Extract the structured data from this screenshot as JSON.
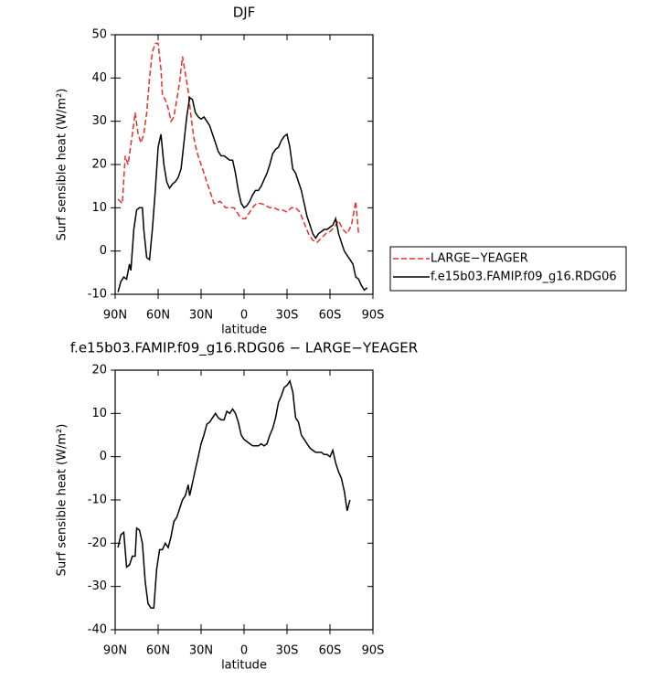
{
  "chart_data": [
    {
      "type": "line",
      "title": "DJF",
      "x_label": "latitude",
      "y_label": "Surf sensible heat (W/m²)",
      "xlim": [
        90,
        -90
      ],
      "xticks": [
        {
          "value": 90,
          "label": "90N"
        },
        {
          "value": 60,
          "label": "60N"
        },
        {
          "value": 30,
          "label": "30N"
        },
        0,
        {
          "value": -30,
          "label": "30S"
        },
        {
          "value": -60,
          "label": "60S"
        },
        {
          "value": -90,
          "label": "90S"
        }
      ],
      "ylim": [
        -10,
        50
      ],
      "yticks": [
        -10,
        0,
        10,
        20,
        30,
        40,
        50
      ],
      "legend": "outside-right",
      "series": [
        {
          "name": "LARGE−YEAGER",
          "color": "#e8302a",
          "dash": true,
          "x": [
            88,
            85,
            83,
            81,
            78,
            76,
            74,
            72,
            70,
            68,
            66,
            64,
            62,
            60,
            58,
            57,
            55,
            53,
            51,
            49,
            47,
            45,
            43,
            41,
            39,
            37,
            35,
            33,
            31,
            29,
            27,
            25,
            23,
            21,
            19,
            17,
            15,
            13,
            11,
            9,
            7,
            5,
            3,
            1,
            -1,
            -3,
            -5,
            -7,
            -9,
            -12,
            -15,
            -18,
            -21,
            -24,
            -27,
            -30,
            -33,
            -36,
            -39,
            -42,
            -45,
            -48,
            -51,
            -54,
            -57,
            -60,
            -63,
            -66,
            -69,
            -72,
            -75,
            -78,
            -80
          ],
          "values": [
            12,
            11,
            22,
            20,
            27,
            32,
            27,
            25,
            27,
            32,
            40,
            46,
            48,
            48,
            42,
            36,
            35,
            33,
            30,
            31,
            35,
            39,
            45,
            41,
            37,
            31,
            26,
            23,
            21,
            19,
            17,
            15,
            13,
            11,
            11,
            11.5,
            11,
            10,
            10,
            10,
            10,
            9,
            8,
            7.5,
            7.5,
            8.5,
            9.5,
            10.5,
            11,
            11,
            10.5,
            10,
            10,
            9.5,
            9.5,
            9,
            10,
            10,
            9,
            6.5,
            4,
            2.5,
            2,
            3,
            4,
            4.5,
            5.5,
            7,
            5,
            4,
            6,
            11.5,
            4
          ]
        },
        {
          "name": "f.e15b03.FAMIP.f09_g16.RDG06",
          "color": "#000000",
          "dash": false,
          "x": [
            88,
            86,
            84,
            82,
            80,
            79,
            77,
            75,
            73,
            71,
            70,
            68,
            66,
            64,
            62,
            60,
            58,
            56,
            54,
            52,
            50,
            48,
            46,
            44,
            42,
            40,
            38,
            36,
            34,
            32,
            30,
            28,
            26,
            24,
            22,
            20,
            18,
            16,
            14,
            12,
            10,
            8,
            6,
            4,
            2,
            0,
            -2,
            -4,
            -6,
            -8,
            -10,
            -12,
            -14,
            -16,
            -18,
            -20,
            -22,
            -24,
            -26,
            -28,
            -30,
            -32,
            -34,
            -36,
            -38,
            -40,
            -42,
            -44,
            -46,
            -48,
            -50,
            -52,
            -54,
            -56,
            -58,
            -60,
            -62,
            -64,
            -66,
            -68,
            -70,
            -72,
            -74,
            -76,
            -78,
            -80,
            -82,
            -84,
            -86
          ],
          "values": [
            -9.5,
            -7,
            -6,
            -6.5,
            -3,
            -4.5,
            5,
            9.5,
            10,
            10,
            5,
            -1.5,
            -2,
            5,
            14,
            24,
            27,
            20,
            16,
            14.5,
            15.5,
            16,
            17,
            19,
            25,
            31,
            35.5,
            35,
            32,
            31,
            30.5,
            31,
            30,
            29,
            27,
            25,
            23,
            22,
            22,
            21.5,
            21,
            21,
            18,
            14,
            11,
            10,
            10.5,
            11.5,
            13,
            14,
            14,
            15,
            16.5,
            18,
            20,
            22.5,
            23.5,
            24,
            25.5,
            26.5,
            27,
            24,
            19,
            18,
            16,
            14,
            11,
            8,
            6,
            4,
            3,
            4,
            4.5,
            5,
            5,
            5.5,
            6,
            7.5,
            4,
            2,
            0,
            -1,
            -2,
            -3,
            -6,
            -6.5,
            -8,
            -9,
            -8.5
          ]
        }
      ]
    },
    {
      "type": "line",
      "title": "f.e15b03.FAMIP.f09_g16.RDG06 − LARGE−YEAGER",
      "x_label": "latitude",
      "y_label": "Surf sensible heat (W/m²)",
      "xlim": [
        90,
        -90
      ],
      "xticks": [
        {
          "value": 90,
          "label": "90N"
        },
        {
          "value": 60,
          "label": "60N"
        },
        {
          "value": 30,
          "label": "30N"
        },
        0,
        {
          "value": -30,
          "label": "30S"
        },
        {
          "value": -60,
          "label": "60S"
        },
        {
          "value": -90,
          "label": "90S"
        }
      ],
      "ylim": [
        -40,
        20
      ],
      "yticks": [
        -40,
        -30,
        -20,
        -10,
        0,
        10,
        20
      ],
      "series": [
        {
          "color": "#000000",
          "dash": false,
          "x": [
            88,
            86,
            84,
            82,
            80,
            78,
            76,
            75,
            73,
            71,
            69,
            67,
            65,
            63,
            61,
            59,
            57,
            55,
            53,
            51,
            49,
            47,
            45,
            43,
            41,
            39,
            38,
            36,
            34,
            32,
            30,
            28,
            26,
            24,
            22,
            20,
            18,
            16,
            14,
            12,
            10,
            8,
            6,
            4,
            2,
            0,
            -2,
            -4,
            -6,
            -8,
            -10,
            -12,
            -14,
            -16,
            -18,
            -20,
            -22,
            -24,
            -26,
            -28,
            -30,
            -32,
            -34,
            -36,
            -38,
            -40,
            -42,
            -44,
            -46,
            -48,
            -50,
            -52,
            -54,
            -56,
            -58,
            -60,
            -62,
            -64,
            -66,
            -68,
            -70,
            -72,
            -74
          ],
          "values": [
            -21,
            -18,
            -17.5,
            -25.5,
            -25,
            -23,
            -23,
            -16.5,
            -17,
            -20,
            -29,
            -34,
            -35,
            -35,
            -26,
            -21.5,
            -21.5,
            -20,
            -21,
            -18.5,
            -15,
            -14,
            -12,
            -10,
            -9,
            -6.5,
            -9,
            -6,
            -3,
            0,
            3,
            5,
            7.5,
            8,
            9,
            10,
            9,
            8.5,
            8.5,
            10.5,
            10,
            11,
            10,
            8,
            5,
            4,
            3.5,
            3,
            2.5,
            2.5,
            2.5,
            3,
            2.5,
            3,
            5,
            6.5,
            9,
            12.5,
            14,
            16,
            16.5,
            17.5,
            15,
            9,
            8,
            5,
            4,
            3,
            2,
            1.5,
            1,
            1,
            1,
            0.5,
            0.5,
            0,
            1.5,
            -1.5,
            -3.5,
            -5,
            -8,
            -12.5,
            -10
          ]
        }
      ]
    }
  ]
}
